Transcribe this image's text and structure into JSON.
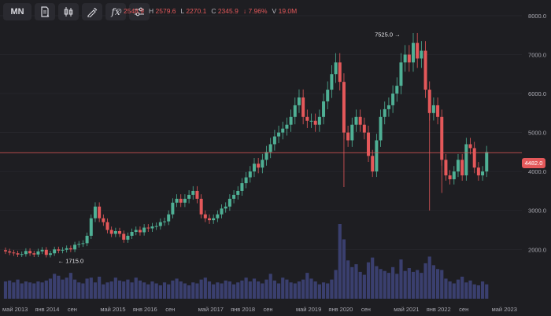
{
  "toolbar": {
    "symbol_label": "MN",
    "icons": [
      "document-icon",
      "candlestick-icon",
      "indicator-pencil-icon",
      "fx-icon",
      "settings-sliders-icon"
    ],
    "fx_label": "fx"
  },
  "ohlc": {
    "o_key": "O",
    "o_val": "2548.9",
    "h_key": "H",
    "h_val": "2579.6",
    "l_key": "L",
    "l_val": "2270.1",
    "c_key": "C",
    "c_val": "2345.9",
    "change": "↓ 7.96%",
    "v_key": "V",
    "v_val": "19.0M"
  },
  "colors": {
    "background": "#1e1e22",
    "up": "#4fb095",
    "down": "#e4585a",
    "volume": "#3a3f6e",
    "grid": "#2a2a30"
  },
  "price_tag": "4482.0",
  "chart_data": {
    "type": "candlestick",
    "interval": "monthly",
    "ylim": [
      1300,
      8200
    ],
    "yticks": [
      "8000.0",
      "7000.0",
      "6000.0",
      "5000.0",
      "4000.0",
      "3000.0",
      "2000.0"
    ],
    "ytick_values": [
      8000,
      7000,
      6000,
      5000,
      4000,
      3000,
      2000
    ],
    "xtick_labels": [
      "май 2013",
      "янв 2014",
      "сен",
      "май 2015",
      "янв 2016",
      "сен",
      "май 2017",
      "янв 2018",
      "сен",
      "май 2019",
      "янв 2020",
      "сен",
      "май 2021",
      "янв 2022",
      "сен",
      "май 2023"
    ],
    "xtick_months": [
      0,
      8,
      16,
      24,
      32,
      40,
      48,
      56,
      64,
      72,
      80,
      88,
      96,
      104,
      112,
      120
    ],
    "annotations": [
      {
        "text": "7525.0",
        "value": 7525,
        "month": 98
      },
      {
        "text": "← 1715.0",
        "value": 1715,
        "month": 9
      }
    ],
    "current_price": 4482,
    "close": [
      1950,
      1920,
      1900,
      1870,
      1880,
      1960,
      1900,
      1870,
      1950,
      1990,
      1860,
      1900,
      2000,
      1970,
      1990,
      2030,
      2000,
      2120,
      2140,
      2160,
      2350,
      2800,
      3100,
      2800,
      2700,
      2500,
      2400,
      2470,
      2400,
      2250,
      2350,
      2450,
      2500,
      2440,
      2560,
      2540,
      2590,
      2600,
      2700,
      2720,
      2900,
      3200,
      3300,
      3200,
      3300,
      3400,
      3500,
      3300,
      2900,
      2800,
      2750,
      2800,
      2900,
      3050,
      3100,
      3300,
      3400,
      3500,
      3700,
      3850,
      4000,
      4200,
      4100,
      4300,
      4500,
      4700,
      4900,
      5000,
      5100,
      5200,
      5400,
      5700,
      5900,
      5400,
      5300,
      5300,
      5200,
      5400,
      5800,
      6100,
      6500,
      6800,
      6300,
      5000,
      4800,
      5200,
      5400,
      5200,
      5000,
      4400,
      4000,
      4800,
      5400,
      5600,
      5700,
      6000,
      6200,
      6800,
      7000,
      6800,
      7300,
      6900,
      7100,
      6100,
      5500,
      5700,
      5400,
      4300,
      3900,
      3800,
      4000,
      4300,
      3900,
      4700,
      4600,
      4100,
      3900,
      4000,
      4500
    ],
    "volume": [
      18,
      19,
      17,
      20,
      16,
      18,
      17,
      16,
      18,
      17,
      19,
      21,
      26,
      24,
      20,
      22,
      27,
      20,
      17,
      16,
      21,
      22,
      17,
      23,
      15,
      17,
      18,
      22,
      19,
      18,
      20,
      17,
      22,
      19,
      17,
      15,
      18,
      16,
      14,
      17,
      15,
      19,
      21,
      18,
      16,
      14,
      17,
      16,
      20,
      22,
      18,
      15,
      17,
      16,
      19,
      18,
      15,
      17,
      19,
      22,
      18,
      21,
      18,
      16,
      20,
      26,
      19,
      16,
      22,
      20,
      17,
      16,
      18,
      20,
      27,
      21,
      18,
      15,
      17,
      16,
      20,
      30,
      78,
      62,
      40,
      33,
      36,
      28,
      25,
      38,
      43,
      34,
      31,
      29,
      27,
      33,
      26,
      41,
      29,
      32,
      28,
      30,
      27,
      37,
      44,
      35,
      31,
      30,
      21,
      18,
      16,
      20,
      23,
      17,
      19,
      15,
      14,
      18,
      15
    ],
    "volume_unit": "M",
    "grid": true
  }
}
